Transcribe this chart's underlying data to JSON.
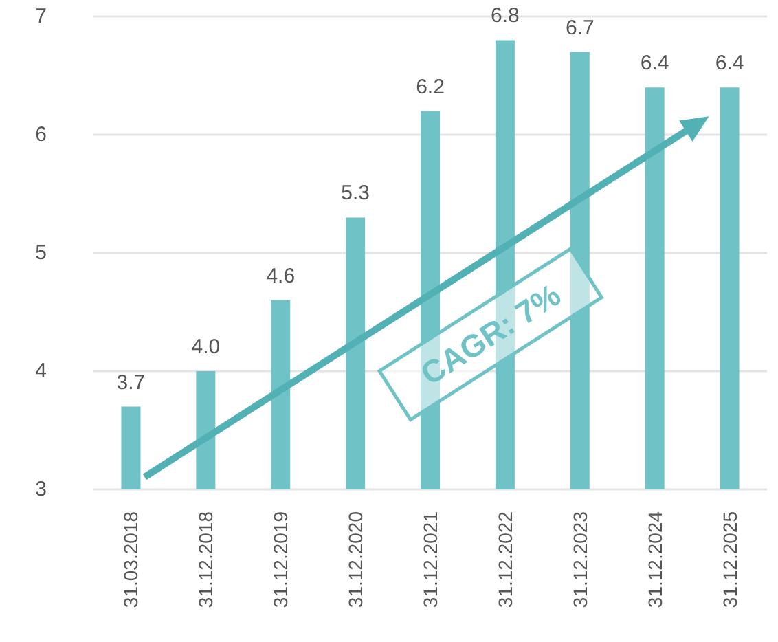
{
  "chart_data": {
    "type": "bar",
    "categories": [
      "31.03.2018",
      "31.12.2018",
      "31.12.2019",
      "31.12.2020",
      "31.12.2021",
      "31.12.2022",
      "31.12.2023",
      "31.12.2024",
      "31.12.2025"
    ],
    "values": [
      3.7,
      4.0,
      4.6,
      5.3,
      6.2,
      6.8,
      6.7,
      6.4,
      6.4
    ],
    "value_labels": [
      "3.7",
      "4.0",
      "4.6",
      "5.3",
      "6.2",
      "6.8",
      "6.7",
      "6.4",
      "6.4"
    ],
    "color": "#6fc3c6",
    "ylim": [
      3,
      7
    ],
    "yticks": [
      3,
      4,
      5,
      6,
      7
    ],
    "grid": "y",
    "annotations": [
      "CAGR: 7%"
    ]
  }
}
